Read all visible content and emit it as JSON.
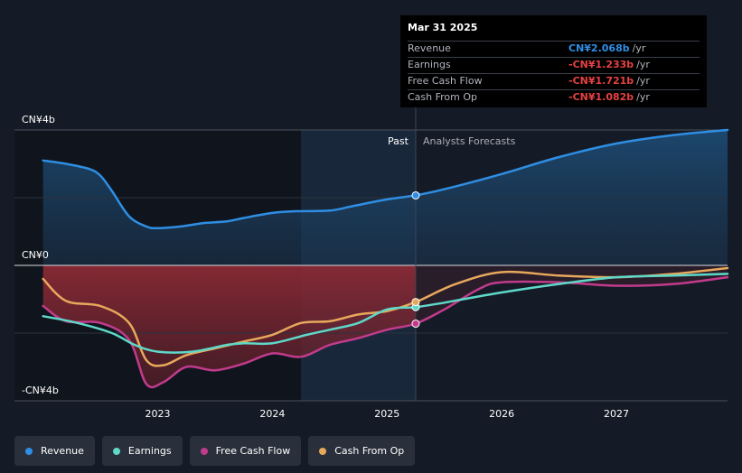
{
  "chart_data": {
    "type": "line",
    "y_axis": {
      "top_label": "CN¥4b",
      "zero_label": "CN¥0",
      "bottom_label": "-CN¥4b",
      "ylim": [
        -4,
        4
      ]
    },
    "x_axis": {
      "tick_labels": [
        "2023",
        "2024",
        "2025",
        "2026",
        "2027"
      ],
      "tick_values": [
        2023,
        2024,
        2025,
        2026,
        2027
      ],
      "xlim": [
        2021.75,
        2027.97
      ]
    },
    "divider": {
      "x": 2025.25,
      "past_label": "Past",
      "forecast_label": "Analysts Forecasts"
    },
    "series": [
      {
        "name": "Revenue",
        "color": "#2f8ee3",
        "points": [
          [
            2022.0,
            3.1
          ],
          [
            2022.2,
            3.0
          ],
          [
            2022.4,
            2.85
          ],
          [
            2022.5,
            2.65
          ],
          [
            2022.6,
            2.2
          ],
          [
            2022.75,
            1.45
          ],
          [
            2022.9,
            1.15
          ],
          [
            2023.0,
            1.1
          ],
          [
            2023.2,
            1.15
          ],
          [
            2023.4,
            1.25
          ],
          [
            2023.6,
            1.3
          ],
          [
            2023.75,
            1.4
          ],
          [
            2024.0,
            1.55
          ],
          [
            2024.2,
            1.6
          ],
          [
            2024.5,
            1.62
          ],
          [
            2024.7,
            1.75
          ],
          [
            2025.0,
            1.95
          ],
          [
            2025.25,
            2.068
          ],
          [
            2025.5,
            2.25
          ],
          [
            2026.0,
            2.7
          ],
          [
            2026.5,
            3.2
          ],
          [
            2027.0,
            3.6
          ],
          [
            2027.5,
            3.85
          ],
          [
            2027.97,
            4.0
          ]
        ]
      },
      {
        "name": "Earnings",
        "color": "#5ed8c9",
        "points": [
          [
            2022.0,
            -1.5
          ],
          [
            2022.3,
            -1.7
          ],
          [
            2022.6,
            -2.0
          ],
          [
            2022.8,
            -2.35
          ],
          [
            2023.0,
            -2.55
          ],
          [
            2023.3,
            -2.55
          ],
          [
            2023.6,
            -2.35
          ],
          [
            2023.75,
            -2.3
          ],
          [
            2024.0,
            -2.3
          ],
          [
            2024.3,
            -2.05
          ],
          [
            2024.5,
            -1.9
          ],
          [
            2024.75,
            -1.7
          ],
          [
            2025.0,
            -1.3
          ],
          [
            2025.25,
            -1.233
          ],
          [
            2025.5,
            -1.1
          ],
          [
            2026.0,
            -0.8
          ],
          [
            2026.5,
            -0.55
          ],
          [
            2027.0,
            -0.35
          ],
          [
            2027.5,
            -0.3
          ],
          [
            2027.97,
            -0.25
          ]
        ]
      },
      {
        "name": "Free Cash Flow",
        "color": "#c13b8c",
        "points": [
          [
            2022.0,
            -1.2
          ],
          [
            2022.2,
            -1.65
          ],
          [
            2022.5,
            -1.7
          ],
          [
            2022.75,
            -2.2
          ],
          [
            2022.9,
            -3.5
          ],
          [
            2023.05,
            -3.45
          ],
          [
            2023.25,
            -3.0
          ],
          [
            2023.5,
            -3.1
          ],
          [
            2023.75,
            -2.9
          ],
          [
            2024.0,
            -2.6
          ],
          [
            2024.25,
            -2.7
          ],
          [
            2024.5,
            -2.35
          ],
          [
            2024.75,
            -2.15
          ],
          [
            2025.0,
            -1.9
          ],
          [
            2025.25,
            -1.721
          ],
          [
            2025.5,
            -1.3
          ],
          [
            2025.8,
            -0.7
          ],
          [
            2026.0,
            -0.5
          ],
          [
            2026.5,
            -0.5
          ],
          [
            2027.0,
            -0.6
          ],
          [
            2027.5,
            -0.55
          ],
          [
            2027.97,
            -0.35
          ]
        ]
      },
      {
        "name": "Cash From Op",
        "color": "#e8a85c",
        "points": [
          [
            2022.0,
            -0.4
          ],
          [
            2022.2,
            -1.05
          ],
          [
            2022.5,
            -1.2
          ],
          [
            2022.75,
            -1.7
          ],
          [
            2022.9,
            -2.8
          ],
          [
            2023.05,
            -2.95
          ],
          [
            2023.25,
            -2.65
          ],
          [
            2023.5,
            -2.45
          ],
          [
            2023.75,
            -2.25
          ],
          [
            2024.0,
            -2.05
          ],
          [
            2024.25,
            -1.7
          ],
          [
            2024.5,
            -1.65
          ],
          [
            2024.75,
            -1.45
          ],
          [
            2025.0,
            -1.35
          ],
          [
            2025.25,
            -1.082
          ],
          [
            2025.6,
            -0.55
          ],
          [
            2026.0,
            -0.2
          ],
          [
            2026.5,
            -0.3
          ],
          [
            2027.0,
            -0.35
          ],
          [
            2027.5,
            -0.25
          ],
          [
            2027.97,
            -0.08
          ]
        ]
      }
    ],
    "grid": true,
    "legend_position": "bottom-left"
  },
  "tooltip": {
    "date": "Mar 31 2025",
    "rows": [
      {
        "label": "Revenue",
        "value": "CN¥2.068b",
        "unit": "/yr",
        "color": "#2f8ee3"
      },
      {
        "label": "Earnings",
        "value": "-CN¥1.233b",
        "unit": "/yr",
        "color": "#e64141"
      },
      {
        "label": "Free Cash Flow",
        "value": "-CN¥1.721b",
        "unit": "/yr",
        "color": "#e64141"
      },
      {
        "label": "Cash From Op",
        "value": "-CN¥1.082b",
        "unit": "/yr",
        "color": "#e64141"
      }
    ]
  },
  "legend": {
    "items": [
      {
        "label": "Revenue",
        "color": "#2f8ee3"
      },
      {
        "label": "Earnings",
        "color": "#5ed8c9"
      },
      {
        "label": "Free Cash Flow",
        "color": "#c13b8c"
      },
      {
        "label": "Cash From Op",
        "color": "#e8a85c"
      }
    ]
  }
}
